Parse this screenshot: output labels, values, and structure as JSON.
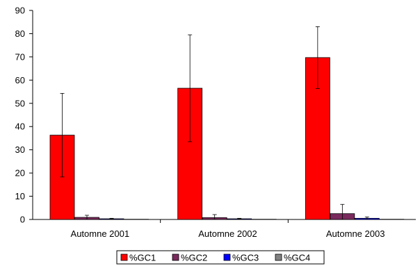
{
  "chart_data": {
    "type": "bar",
    "title": "",
    "xlabel": "",
    "ylabel": "",
    "ylim": [
      0,
      90
    ],
    "yticks": [
      0,
      10,
      20,
      30,
      40,
      50,
      60,
      70,
      80,
      90
    ],
    "grid": false,
    "legend_position": "bottom",
    "categories": [
      "Automne 2001",
      "Automne 2002",
      "Automne 2003"
    ],
    "series": [
      {
        "name": "%GC1",
        "color": "#ff0000",
        "values": [
          36.3,
          56.5,
          69.7
        ],
        "error": [
          18.0,
          23.0,
          13.3
        ]
      },
      {
        "name": "%GC2",
        "color": "#7b2a5e",
        "values": [
          0.9,
          0.8,
          2.5
        ],
        "error": [
          0.9,
          1.3,
          4.0
        ]
      },
      {
        "name": "%GC3",
        "color": "#0000ff",
        "values": [
          0.3,
          0.3,
          0.5
        ],
        "error": [
          0.2,
          0.2,
          0.6
        ]
      },
      {
        "name": "%GC4",
        "color": "#808080",
        "values": [
          0.1,
          0.1,
          0.1
        ],
        "error": [
          0,
          0,
          0
        ]
      }
    ]
  }
}
